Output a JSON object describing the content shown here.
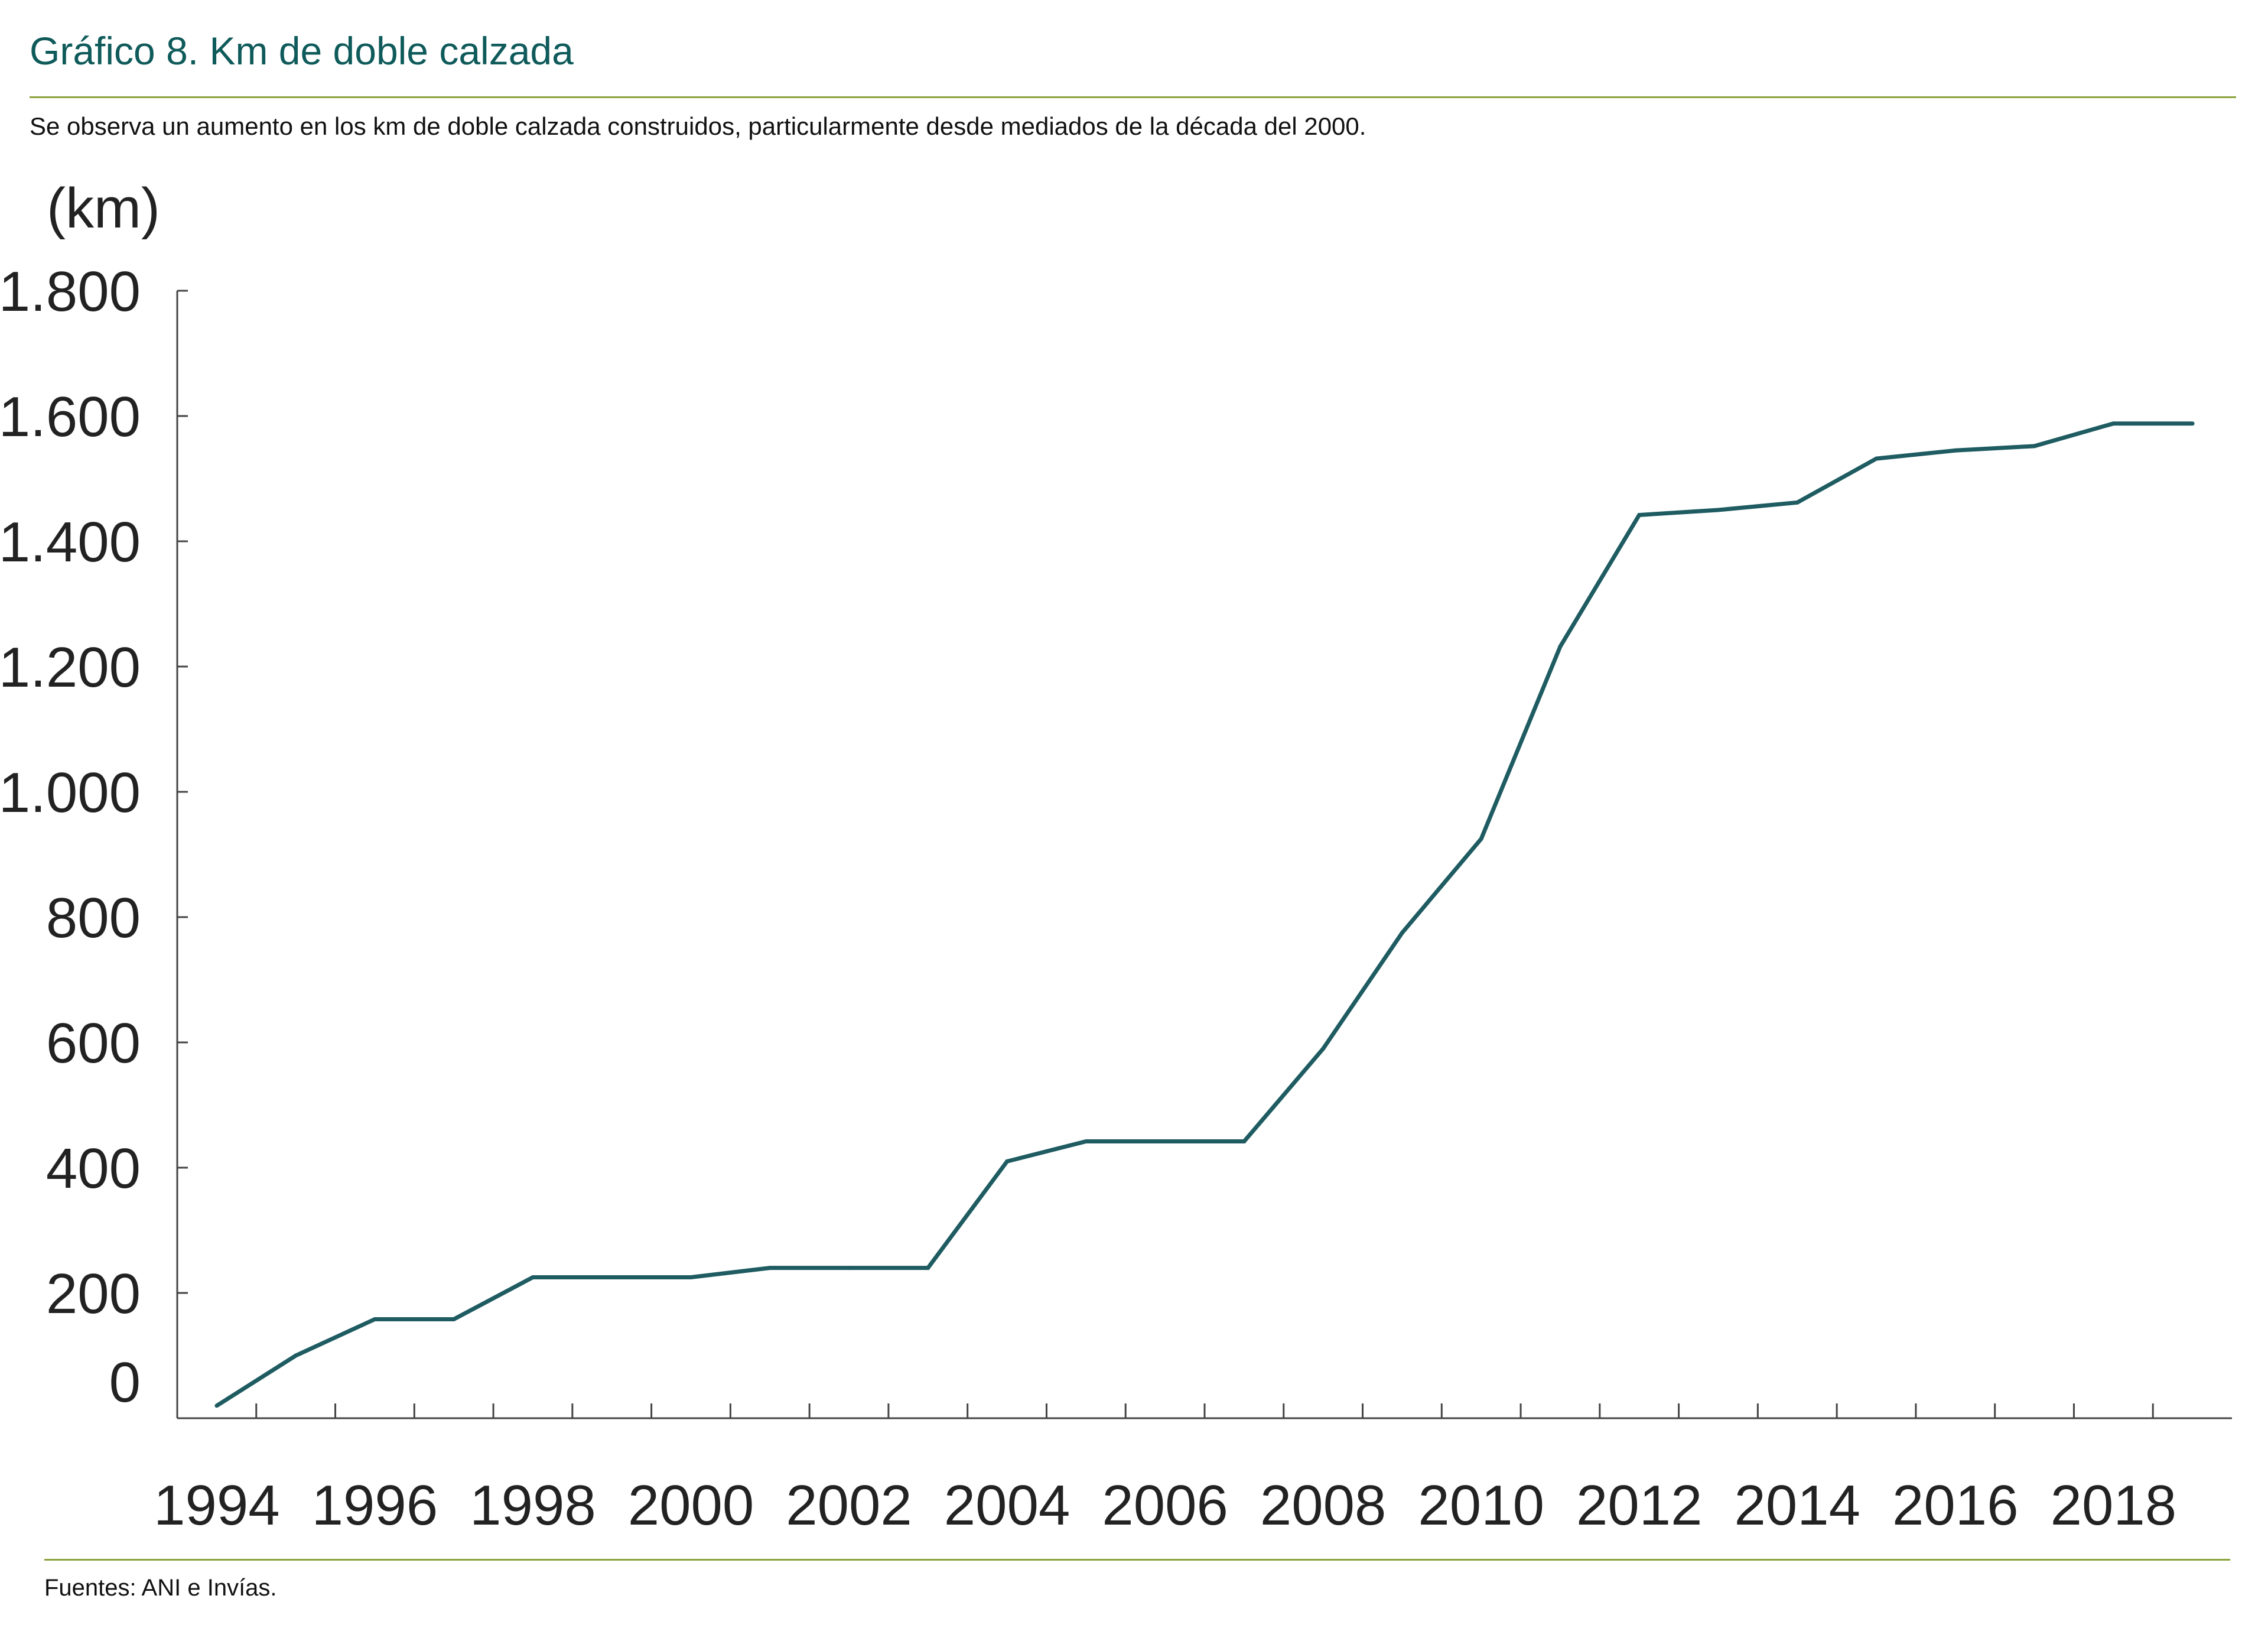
{
  "header": {
    "title": "Gráfico 8. Km de doble calzada",
    "subtitle": "Se observa un aumento en los km de doble calzada construidos, particularmente desde mediados de la década del 2000."
  },
  "footer": {
    "source": "Fuentes: ANI e Invías."
  },
  "colors": {
    "line": "#1e5c62",
    "rule": "#8aa23c",
    "title": "#0f5a5a"
  },
  "chart_data": {
    "type": "line",
    "title": "Gráfico 8. Km de doble calzada",
    "xlabel": "",
    "ylabel": "(km)",
    "ylim": [
      0,
      1800
    ],
    "yticks": [
      0,
      200,
      400,
      600,
      800,
      1000,
      1200,
      1400,
      1600,
      1800
    ],
    "ytick_labels": [
      "0",
      "200",
      "400",
      "600",
      "800",
      "1.000",
      "1.200",
      "1.400",
      "1.600",
      "1.800"
    ],
    "xlim": [
      1993.5,
      2019.5
    ],
    "xtick_labels": [
      "1994",
      "1996",
      "1998",
      "2000",
      "2002",
      "2004",
      "2006",
      "2008",
      "2010",
      "2012",
      "2014",
      "2016",
      "2018"
    ],
    "grid": false,
    "series": [
      {
        "name": "Km de doble calzada",
        "x": [
          1994,
          1995,
          1996,
          1997,
          1998,
          1999,
          2000,
          2001,
          2002,
          2003,
          2004,
          2005,
          2006,
          2007,
          2008,
          2009,
          2010,
          2011,
          2012,
          2013,
          2014,
          2015,
          2016,
          2017,
          2018,
          2019
        ],
        "values": [
          20,
          100,
          158,
          158,
          225,
          225,
          225,
          240,
          240,
          240,
          410,
          442,
          442,
          442,
          590,
          775,
          925,
          1232,
          1442,
          1450,
          1462,
          1532,
          1545,
          1552,
          1588,
          1588
        ]
      }
    ]
  }
}
